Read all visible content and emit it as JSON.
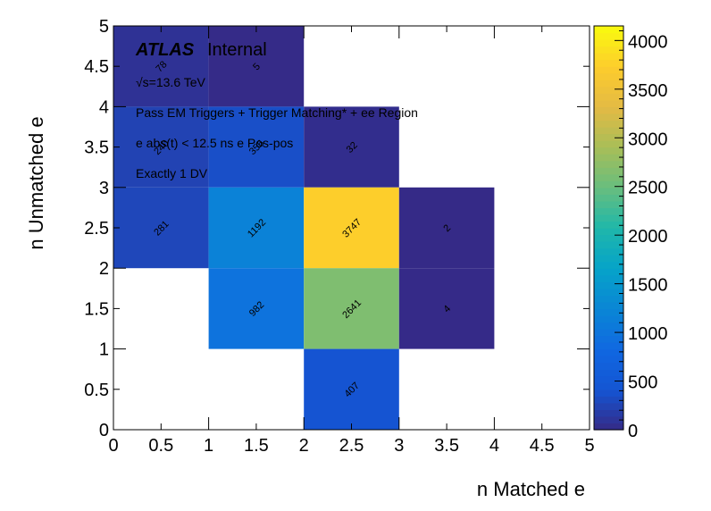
{
  "chart_data": {
    "type": "heatmap",
    "xlabel": "n Matched e",
    "ylabel": "n Unmatched e",
    "xlim": [
      0,
      5
    ],
    "ylim": [
      0,
      5
    ],
    "zlim": [
      0,
      4150
    ],
    "x_ticks": [
      "0",
      "0.5",
      "1",
      "1.5",
      "2",
      "2.5",
      "3",
      "3.5",
      "4",
      "4.5",
      "5"
    ],
    "y_ticks": [
      "0",
      "0.5",
      "1",
      "1.5",
      "2",
      "2.5",
      "3",
      "3.5",
      "4",
      "4.5",
      "5"
    ],
    "z_ticks": [
      "0",
      "500",
      "1000",
      "1500",
      "2000",
      "2500",
      "3000",
      "3500",
      "4000"
    ],
    "colorscale": "parula",
    "cells": [
      {
        "x": 0,
        "y": 4,
        "value": 78
      },
      {
        "x": 1,
        "y": 4,
        "value": 5
      },
      {
        "x": 0,
        "y": 3,
        "value": 240
      },
      {
        "x": 1,
        "y": 3,
        "value": 356
      },
      {
        "x": 2,
        "y": 3,
        "value": 32
      },
      {
        "x": 0,
        "y": 2,
        "value": 281
      },
      {
        "x": 1,
        "y": 2,
        "value": 1192
      },
      {
        "x": 2,
        "y": 2,
        "value": 3747
      },
      {
        "x": 3,
        "y": 2,
        "value": 2
      },
      {
        "x": 1,
        "y": 1,
        "value": 982
      },
      {
        "x": 2,
        "y": 1,
        "value": 2641
      },
      {
        "x": 3,
        "y": 1,
        "value": 4
      },
      {
        "x": 2,
        "y": 0,
        "value": 407
      }
    ]
  },
  "annotations": {
    "atlas": "ATLAS",
    "internal": "Internal",
    "energy": "√s=13.6 TeV",
    "line1": "Pass EM Triggers + Trigger Matching* + ee Region",
    "line2": "e abs(t) < 12.5 ns e Pos-pos",
    "line3": "Exactly 1 DV"
  }
}
